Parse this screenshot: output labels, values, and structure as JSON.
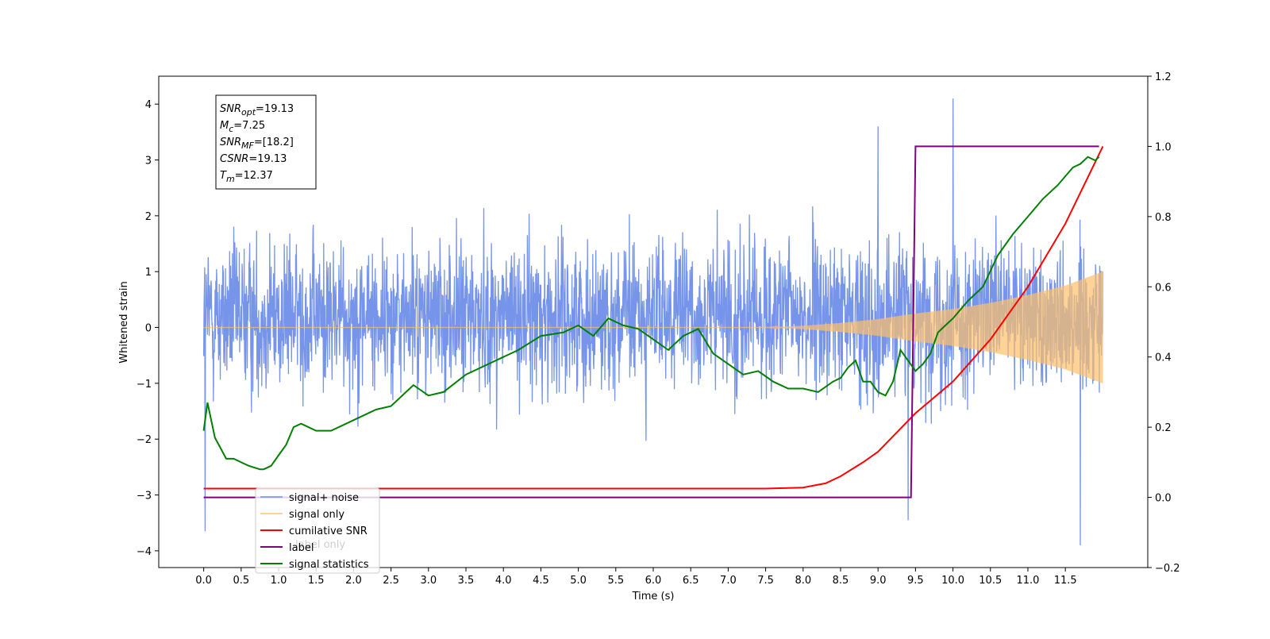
{
  "chart_data": {
    "type": "line",
    "xlabel": "Time (s)",
    "ylabel": "Whitened strain",
    "xlim": [
      -0.6,
      12.6
    ],
    "ylim_left": [
      -4.3,
      4.5
    ],
    "ylim_right": [
      -0.2,
      1.2
    ],
    "x_ticks": [
      "0.0",
      "0.5",
      "1.0",
      "1.5",
      "2.0",
      "2.5",
      "3.0",
      "3.5",
      "4.0",
      "4.5",
      "5.0",
      "5.5",
      "6.0",
      "6.5",
      "7.0",
      "7.5",
      "8.0",
      "8.5",
      "9.0",
      "9.5",
      "10.0",
      "10.5",
      "11.0",
      "11.5"
    ],
    "y_ticks_left": [
      "−4",
      "−3",
      "−2",
      "−1",
      "0",
      "1",
      "2",
      "3",
      "4"
    ],
    "y_ticks_right": [
      "−0.2",
      "0.0",
      "0.2",
      "0.4",
      "0.6",
      "0.8",
      "1.0",
      "1.2"
    ],
    "legend": {
      "placement": "lower-left",
      "entries": [
        {
          "label": "signal+ noise",
          "color": "#6f8ee8"
        },
        {
          "label": "signal only",
          "color": "#ffc06a"
        },
        {
          "label": "cumilative SNR",
          "color": "#ff0000"
        },
        {
          "label": "label",
          "color": "#800080"
        },
        {
          "label": "signal statistics",
          "color": "#008000"
        }
      ],
      "occluded_text": [
        "label only"
      ]
    },
    "annotation": {
      "placement": "top-left",
      "lines": [
        {
          "base": "SNR",
          "sub": "opt",
          "value": "=19.13"
        },
        {
          "base": "M",
          "sub": "c",
          "value": "=7.25"
        },
        {
          "base": "SNR",
          "sub": "MF",
          "value": "=[18.2]"
        },
        {
          "base": "CSNR",
          "sub": "",
          "value": "=19.13"
        },
        {
          "base": "T",
          "sub": "m",
          "value": "=12.37"
        }
      ]
    },
    "series": [
      {
        "name": "signal+ noise",
        "axis": "left",
        "color": "#6f8ee8",
        "description": "noise band",
        "x_range": [
          0.0,
          12.0
        ],
        "envelope_typical": [
          -1.9,
          2.4
        ],
        "notable_peaks": [
          [
            10.0,
            4.1
          ],
          [
            11.7,
            -3.9
          ],
          [
            0.02,
            -3.65
          ],
          [
            9.4,
            -3.45
          ],
          [
            9.0,
            3.6
          ]
        ]
      },
      {
        "name": "signal only",
        "axis": "left",
        "color": "#ffc06a",
        "amplitude_envelope": {
          "x": [
            0.0,
            7.5,
            8.0,
            8.5,
            9.0,
            9.5,
            10.0,
            10.5,
            11.0,
            11.5,
            12.0
          ],
          "amp": [
            0.0,
            0.0,
            0.03,
            0.08,
            0.15,
            0.25,
            0.33,
            0.44,
            0.58,
            0.75,
            1.0
          ]
        }
      },
      {
        "name": "cumilative SNR",
        "axis": "right",
        "color": "#ff0000",
        "x": [
          0.0,
          7.5,
          8.0,
          8.3,
          8.5,
          8.8,
          9.0,
          9.5,
          10.0,
          10.5,
          11.0,
          11.5,
          12.0
        ],
        "y": [
          0.025,
          0.025,
          0.028,
          0.04,
          0.06,
          0.1,
          0.13,
          0.24,
          0.33,
          0.45,
          0.6,
          0.78,
          1.0
        ]
      },
      {
        "name": "label",
        "axis": "right",
        "color": "#800080",
        "x": [
          0.0,
          9.44,
          9.5,
          11.95
        ],
        "y": [
          0.0,
          0.0,
          1.0,
          1.0
        ]
      },
      {
        "name": "signal statistics",
        "axis": "right",
        "color": "#008000",
        "x": [
          0.0,
          0.05,
          0.15,
          0.3,
          0.4,
          0.5,
          0.6,
          0.75,
          0.8,
          0.9,
          1.0,
          1.1,
          1.2,
          1.3,
          1.5,
          1.7,
          2.0,
          2.3,
          2.5,
          2.7,
          2.8,
          3.0,
          3.2,
          3.5,
          3.7,
          4.0,
          4.2,
          4.5,
          4.8,
          5.0,
          5.2,
          5.4,
          5.6,
          5.8,
          6.0,
          6.2,
          6.4,
          6.6,
          6.8,
          7.0,
          7.2,
          7.4,
          7.6,
          7.8,
          8.0,
          8.2,
          8.4,
          8.5,
          8.6,
          8.7,
          8.8,
          8.9,
          9.0,
          9.1,
          9.2,
          9.3,
          9.4,
          9.5,
          9.6,
          9.7,
          9.8,
          9.9,
          10.0,
          10.2,
          10.4,
          10.6,
          10.8,
          11.0,
          11.2,
          11.4,
          11.6,
          11.7,
          11.8,
          11.9,
          11.95
        ],
        "y": [
          0.19,
          0.27,
          0.17,
          0.11,
          0.11,
          0.1,
          0.09,
          0.08,
          0.08,
          0.09,
          0.12,
          0.15,
          0.2,
          0.21,
          0.19,
          0.19,
          0.22,
          0.25,
          0.26,
          0.3,
          0.32,
          0.29,
          0.3,
          0.35,
          0.37,
          0.4,
          0.42,
          0.46,
          0.47,
          0.49,
          0.46,
          0.51,
          0.49,
          0.48,
          0.45,
          0.42,
          0.46,
          0.48,
          0.41,
          0.38,
          0.35,
          0.36,
          0.33,
          0.31,
          0.31,
          0.3,
          0.33,
          0.34,
          0.37,
          0.39,
          0.33,
          0.33,
          0.3,
          0.29,
          0.33,
          0.42,
          0.39,
          0.36,
          0.38,
          0.41,
          0.47,
          0.49,
          0.51,
          0.56,
          0.6,
          0.69,
          0.75,
          0.8,
          0.85,
          0.89,
          0.94,
          0.95,
          0.97,
          0.96,
          0.97
        ]
      }
    ]
  }
}
